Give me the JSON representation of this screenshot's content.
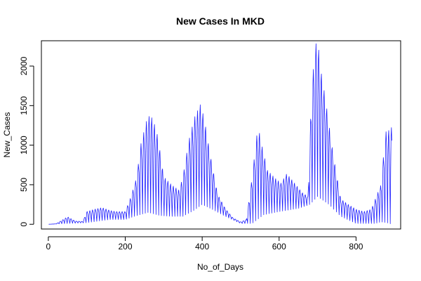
{
  "chart_data": {
    "type": "line",
    "title": "New Cases In MKD",
    "xlabel": "No_of_Days",
    "ylabel": "New_Cases",
    "xlim": [
      -18,
      916
    ],
    "ylim": [
      -60,
      2320
    ],
    "x_ticks": [
      0,
      200,
      400,
      600,
      800
    ],
    "y_ticks": [
      0,
      500,
      1000,
      1500,
      2000
    ],
    "grid": false,
    "legend": "none",
    "series": [
      {
        "color": "#1f1fff",
        "pattern": "weekly",
        "x_start": 1,
        "x_end": 893,
        "envelope_max": {
          "x": [
            1,
            20,
            35,
            50,
            70,
            90,
            100,
            120,
            140,
            160,
            175,
            200,
            215,
            230,
            240,
            255,
            265,
            275,
            285,
            300,
            320,
            340,
            350,
            365,
            380,
            395,
            405,
            420,
            440,
            460,
            480,
            500,
            515,
            530,
            545,
            555,
            570,
            590,
            605,
            620,
            640,
            660,
            675,
            685,
            695,
            700,
            710,
            720,
            740,
            760,
            780,
            800,
            820,
            840,
            855,
            865,
            872,
            880,
            886,
            893
          ],
          "y": [
            0,
            5,
            50,
            95,
            40,
            35,
            160,
            190,
            210,
            175,
            160,
            160,
            350,
            600,
            1000,
            1300,
            1390,
            1280,
            1100,
            600,
            500,
            430,
            600,
            1050,
            1350,
            1510,
            1350,
            900,
            380,
            200,
            80,
            30,
            60,
            600,
            1250,
            1000,
            680,
            580,
            520,
            640,
            520,
            400,
            350,
            1750,
            2270,
            2330,
            1900,
            1600,
            900,
            320,
            250,
            190,
            160,
            190,
            380,
            500,
            900,
            1260,
            1170,
            1230
          ]
        },
        "envelope_min": {
          "x": [
            1,
            100,
            160,
            200,
            230,
            260,
            290,
            320,
            350,
            380,
            400,
            430,
            460,
            500,
            530,
            560,
            600,
            650,
            680,
            700,
            730,
            760,
            800,
            850,
            865,
            880,
            893
          ],
          "y": [
            0,
            20,
            60,
            60,
            110,
            150,
            110,
            100,
            100,
            180,
            250,
            180,
            100,
            10,
            10,
            120,
            160,
            200,
            250,
            350,
            250,
            100,
            10,
            10,
            30,
            20,
            0
          ]
        }
      }
    ]
  }
}
